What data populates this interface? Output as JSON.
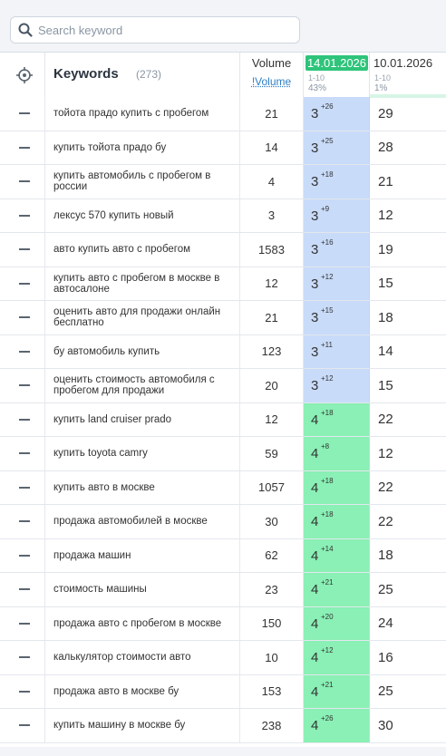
{
  "search": {
    "placeholder": "Search keyword",
    "value": ""
  },
  "header": {
    "keywords_label": "Keywords",
    "keywords_count": "(273)",
    "volume_label": "Volume",
    "volume_link": "!Volume",
    "date1": {
      "label": "14.01.2026",
      "range": "1-10",
      "percent": "43%"
    },
    "date2": {
      "label": "10.01.2026",
      "range": "1-10",
      "percent": "1%"
    }
  },
  "colors": {
    "top3": "#c8dbf9",
    "top10": "#8af0b5",
    "date_badge": "#2ec47a",
    "link": "#2e7fc6"
  },
  "icons": {
    "target": "crosshair-icon",
    "search": "search-icon",
    "row_toggle": "minus-icon"
  },
  "rows": [
    {
      "keyword": "тойота прадо купить с пробегом",
      "volume": "21",
      "pos": "3",
      "delta": "+26",
      "prev": "29",
      "band": "blue"
    },
    {
      "keyword": "купить тойота прадо бу",
      "volume": "14",
      "pos": "3",
      "delta": "+25",
      "prev": "28",
      "band": "blue"
    },
    {
      "keyword": "купить автомобиль с пробегом в россии",
      "volume": "4",
      "pos": "3",
      "delta": "+18",
      "prev": "21",
      "band": "blue"
    },
    {
      "keyword": "лексус 570 купить новый",
      "volume": "3",
      "pos": "3",
      "delta": "+9",
      "prev": "12",
      "band": "blue"
    },
    {
      "keyword": "авто купить авто с пробегом",
      "volume": "1583",
      "pos": "3",
      "delta": "+16",
      "prev": "19",
      "band": "blue"
    },
    {
      "keyword": "купить авто с пробегом в москве в автосалоне",
      "volume": "12",
      "pos": "3",
      "delta": "+12",
      "prev": "15",
      "band": "blue"
    },
    {
      "keyword": "оценить авто для продажи онлайн бесплатно",
      "volume": "21",
      "pos": "3",
      "delta": "+15",
      "prev": "18",
      "band": "blue"
    },
    {
      "keyword": "бу автомобиль купить",
      "volume": "123",
      "pos": "3",
      "delta": "+11",
      "prev": "14",
      "band": "blue"
    },
    {
      "keyword": "оценить стоимость автомобиля с пробегом для продажи",
      "volume": "20",
      "pos": "3",
      "delta": "+12",
      "prev": "15",
      "band": "blue"
    },
    {
      "keyword": "купить land cruiser prado",
      "volume": "12",
      "pos": "4",
      "delta": "+18",
      "prev": "22",
      "band": "green"
    },
    {
      "keyword": "купить toyota camry",
      "volume": "59",
      "pos": "4",
      "delta": "+8",
      "prev": "12",
      "band": "green"
    },
    {
      "keyword": "купить авто в москве",
      "volume": "1057",
      "pos": "4",
      "delta": "+18",
      "prev": "22",
      "band": "green"
    },
    {
      "keyword": "продажа автомобилей в москве",
      "volume": "30",
      "pos": "4",
      "delta": "+18",
      "prev": "22",
      "band": "green"
    },
    {
      "keyword": "продажа машин",
      "volume": "62",
      "pos": "4",
      "delta": "+14",
      "prev": "18",
      "band": "green"
    },
    {
      "keyword": "стоимость машины",
      "volume": "23",
      "pos": "4",
      "delta": "+21",
      "prev": "25",
      "band": "green"
    },
    {
      "keyword": "продажа авто с пробегом в москве",
      "volume": "150",
      "pos": "4",
      "delta": "+20",
      "prev": "24",
      "band": "green"
    },
    {
      "keyword": "калькулятор стоимости авто",
      "volume": "10",
      "pos": "4",
      "delta": "+12",
      "prev": "16",
      "band": "green"
    },
    {
      "keyword": "продажа авто в москве бу",
      "volume": "153",
      "pos": "4",
      "delta": "+21",
      "prev": "25",
      "band": "green"
    },
    {
      "keyword": "купить машину в москве бу",
      "volume": "238",
      "pos": "4",
      "delta": "+26",
      "prev": "30",
      "band": "green"
    }
  ]
}
